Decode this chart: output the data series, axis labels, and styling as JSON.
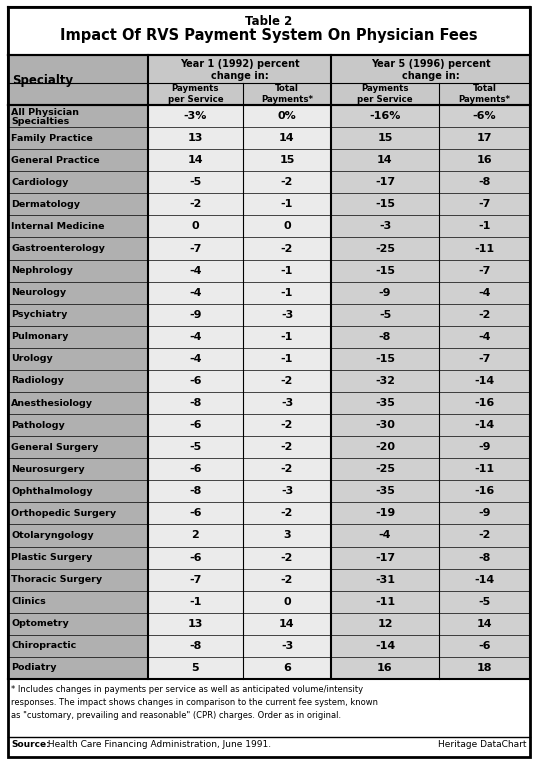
{
  "title_line1": "Table 2",
  "title_line2": "Impact Of RVS Payment System On Physician Fees",
  "rows": [
    [
      "All Physician\nSpecialties",
      "-3%",
      "0%",
      "-16%",
      "-6%"
    ],
    [
      "Family Practice",
      "13",
      "14",
      "15",
      "17"
    ],
    [
      "General Practice",
      "14",
      "15",
      "14",
      "16"
    ],
    [
      "Cardiology",
      "-5",
      "-2",
      "-17",
      "-8"
    ],
    [
      "Dermatology",
      "-2",
      "-1",
      "-15",
      "-7"
    ],
    [
      "Internal Medicine",
      "0",
      "0",
      "-3",
      "-1"
    ],
    [
      "Gastroenterology",
      "-7",
      "-2",
      "-25",
      "-11"
    ],
    [
      "Nephrology",
      "-4",
      "-1",
      "-15",
      "-7"
    ],
    [
      "Neurology",
      "-4",
      "-1",
      "-9",
      "-4"
    ],
    [
      "Psychiatry",
      "-9",
      "-3",
      "-5",
      "-2"
    ],
    [
      "Pulmonary",
      "-4",
      "-1",
      "-8",
      "-4"
    ],
    [
      "Urology",
      "-4",
      "-1",
      "-15",
      "-7"
    ],
    [
      "Radiology",
      "-6",
      "-2",
      "-32",
      "-14"
    ],
    [
      "Anesthesiology",
      "-8",
      "-3",
      "-35",
      "-16"
    ],
    [
      "Pathology",
      "-6",
      "-2",
      "-30",
      "-14"
    ],
    [
      "General Surgery",
      "-5",
      "-2",
      "-20",
      "-9"
    ],
    [
      "Neurosurgery",
      "-6",
      "-2",
      "-25",
      "-11"
    ],
    [
      "Ophthalmology",
      "-8",
      "-3",
      "-35",
      "-16"
    ],
    [
      "Orthopedic Surgery",
      "-6",
      "-2",
      "-19",
      "-9"
    ],
    [
      "Otolaryngology",
      "2",
      "3",
      "-4",
      "-2"
    ],
    [
      "Plastic Surgery",
      "-6",
      "-2",
      "-17",
      "-8"
    ],
    [
      "Thoracic Surgery",
      "-7",
      "-2",
      "-31",
      "-14"
    ],
    [
      "Clinics",
      "-1",
      "0",
      "-11",
      "-5"
    ],
    [
      "Optometry",
      "13",
      "14",
      "12",
      "14"
    ],
    [
      "Chiropractic",
      "-8",
      "-3",
      "-14",
      "-6"
    ],
    [
      "Podiatry",
      "5",
      "6",
      "16",
      "18"
    ]
  ],
  "footnote1": "* Includes changes in payments per service as well as anticipated volume/intensity",
  "footnote2": "responses. The impact shows changes in comparison to the current fee system, known",
  "footnote3": "as \"customary, prevailing and reasonable\" (CPR) charges. Order as in original.",
  "source_bold": "Source:",
  "source_rest": " Health Care Financing Administration, June 1991.",
  "source_right": "Heritage DataChart",
  "col_gray": "#b0b0b0",
  "data_col1_bg": "#e0e0e0",
  "data_col2_bg": "#c8c8c8",
  "header_bg": "#c8c8c8",
  "white": "#ffffff",
  "black": "#000000"
}
